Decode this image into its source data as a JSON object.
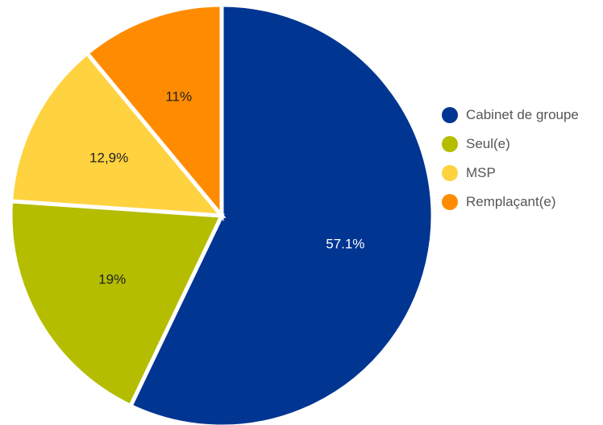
{
  "chart_data": {
    "type": "pie",
    "title": "",
    "categories": [
      "Cabinet de groupe",
      "Seul(e)",
      "MSP",
      "Remplaçant(e)"
    ],
    "values": [
      57.1,
      19,
      12.9,
      11
    ],
    "data_labels": [
      "57.1%",
      "19%",
      "12,9%",
      "11%"
    ],
    "colors": [
      "#003591",
      "#b5bd00",
      "#ffd23f",
      "#ff8c00"
    ],
    "label_colors": [
      "#ffffff",
      "#222222",
      "#222222",
      "#222222"
    ],
    "start_angle_deg": 0,
    "direction": "clockwise",
    "legend_position": "right"
  }
}
